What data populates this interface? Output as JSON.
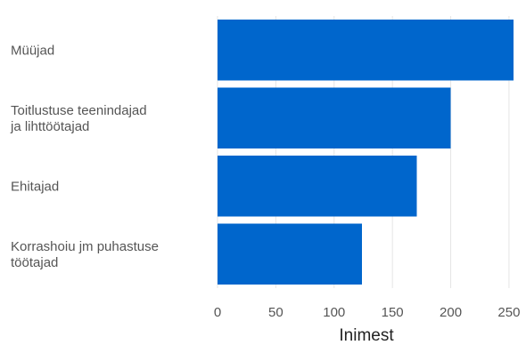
{
  "chart_data": {
    "type": "bar",
    "orientation": "horizontal",
    "categories": [
      [
        "Müüjad"
      ],
      [
        "Toitlustuse teenindajad",
        "ja lihttöötajad"
      ],
      [
        "Ehitajad"
      ],
      [
        "Korrashoiu jm puhastuse",
        "töötajad"
      ]
    ],
    "values": [
      254,
      200,
      171,
      124
    ],
    "xlabel": "Inimest",
    "ylabel": "",
    "title": "",
    "xlim": [
      0,
      260
    ],
    "xticks": [
      "0",
      "50",
      "100",
      "150",
      "200",
      "250"
    ],
    "tick_values": [
      0,
      50,
      100,
      150,
      200,
      250
    ],
    "bar_color": "#0066cc",
    "grid": true,
    "legend": "none"
  }
}
